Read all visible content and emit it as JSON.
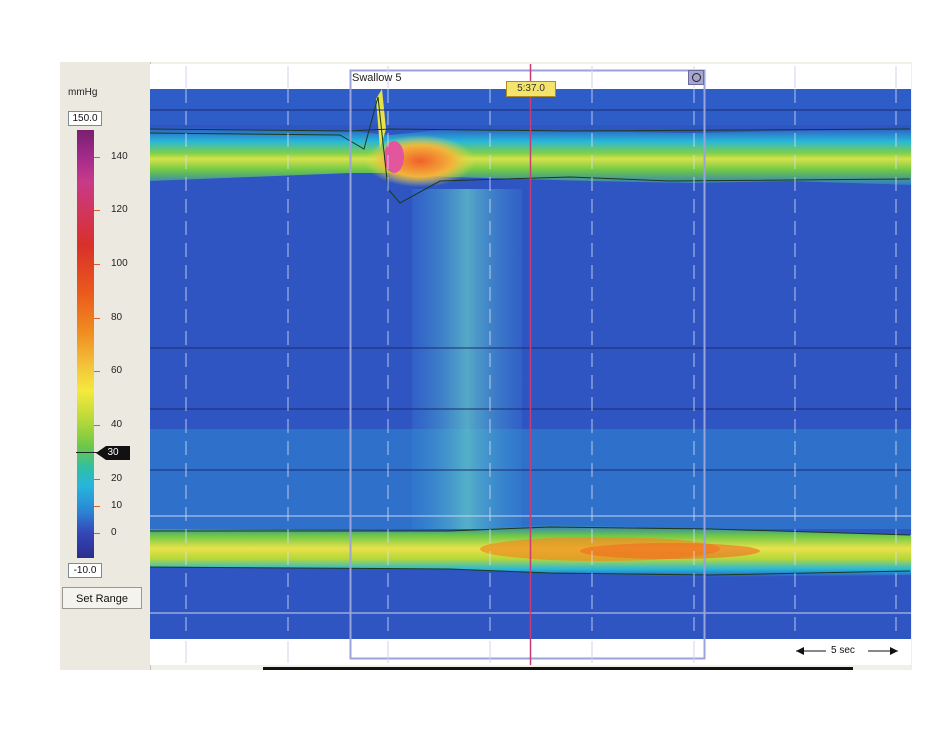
{
  "colorbar": {
    "unit": "mmHg",
    "max_value": "150.0",
    "min_value": "-10.0",
    "tick_labels": [
      "140",
      "120",
      "100",
      "80",
      "60",
      "40",
      "20",
      "10",
      "0"
    ],
    "marker_value": "30",
    "set_range_label": "Set Range"
  },
  "swallow": {
    "title": "Swallow 5",
    "time": "5:37.0"
  },
  "scale": {
    "label": "5 sec"
  },
  "colors": {
    "background_blue": "#2f55c3",
    "cursor_line": "#c83c78",
    "selection_box": "#9aa4d8"
  }
}
